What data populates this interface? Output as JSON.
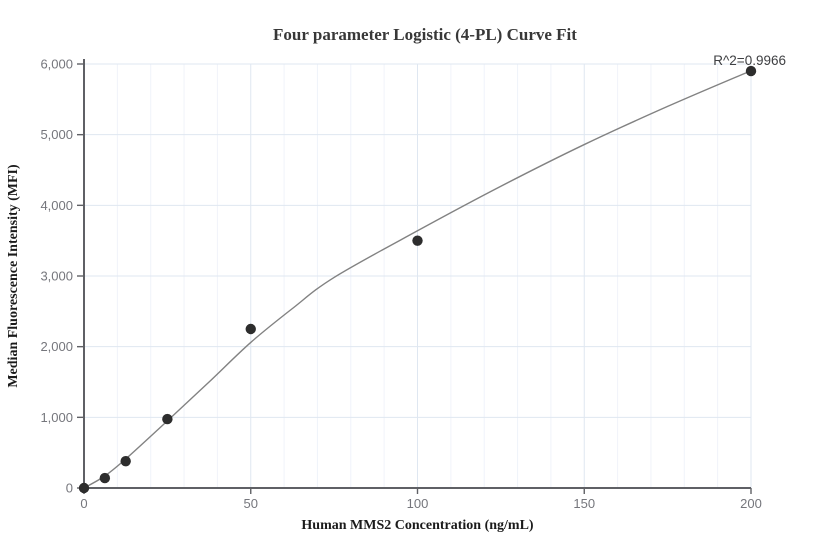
{
  "chart_data": {
    "type": "scatter",
    "title": "Four parameter Logistic (4-PL) Curve Fit",
    "xlabel": "Human MMS2 Concentration (ng/mL)",
    "ylabel": "Median Fluorescence Intensity (MFI)",
    "annotation": "R^2=0.9966",
    "r_squared": 0.9966,
    "xlim": [
      0,
      200
    ],
    "ylim": [
      0,
      6000
    ],
    "x_ticks": [
      0,
      50,
      100,
      150,
      200
    ],
    "y_ticks": [
      0,
      1000,
      2000,
      3000,
      4000,
      5000,
      6000
    ],
    "x_minor_grid_step": 10,
    "grid": true,
    "legend": "none",
    "series": [
      {
        "name": "standard-points",
        "type": "scatter",
        "marker": "circle",
        "x": [
          0,
          6.25,
          12.5,
          25,
          50,
          100,
          200
        ],
        "y": [
          0,
          140,
          380,
          975,
          2250,
          3500,
          5900
        ]
      },
      {
        "name": "4pl-fit-curve",
        "type": "line",
        "x": [
          0,
          6.25,
          12.5,
          25,
          37.5,
          50,
          62.5,
          75,
          100,
          125,
          150,
          175,
          200
        ],
        "y": [
          0,
          170,
          410,
          950,
          1500,
          2060,
          2540,
          2980,
          3640,
          4270,
          4860,
          5400,
          5905
        ]
      }
    ],
    "colors": {
      "background": "#ffffff",
      "axis": "#5f6065",
      "tick_label": "#75767c",
      "grid_major": "#dfe7f1",
      "grid_minor": "#f0f3fa",
      "curve": "#828282",
      "point": "#2d2d2d",
      "title": "#383838",
      "axis_label": "#1b1b1b",
      "annotation": "#3f4043"
    }
  }
}
